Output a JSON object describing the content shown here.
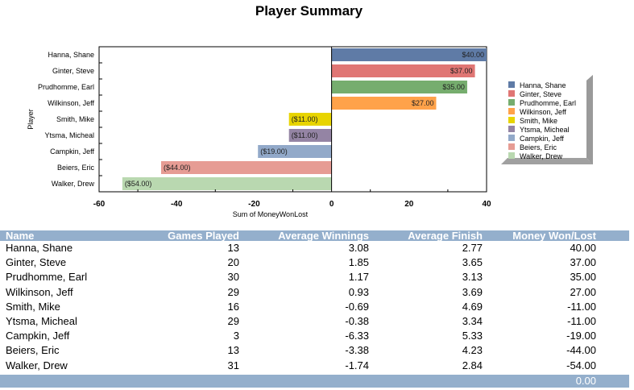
{
  "title": "Player Summary",
  "chart_data": {
    "type": "bar",
    "orientation": "horizontal",
    "categories": [
      "Hanna, Shane",
      "Ginter, Steve",
      "Prudhomme, Earl",
      "Wilkinson, Jeff",
      "Smith, Mike",
      "Ytsma, Micheal",
      "Campkin, Jeff",
      "Beiers, Eric",
      "Walker, Drew"
    ],
    "values": [
      40,
      37,
      35,
      27,
      -11,
      -11,
      -19,
      -44,
      -54
    ],
    "data_labels": [
      "$40.00",
      "$37.00",
      "$35.00",
      "$27.00",
      "($11.00)",
      "($11.00)",
      "($19.00)",
      "($44.00)",
      "($54.00)"
    ],
    "colors": [
      "#5f7ba6",
      "#e07674",
      "#76ad6e",
      "#ffa24a",
      "#e8d400",
      "#9484a4",
      "#92a9c9",
      "#e69c94",
      "#b9d8b0"
    ],
    "xlabel": "Sum of MoneyWonLost",
    "ylabel": "Player",
    "xlim": [
      -60,
      40
    ],
    "xticks": [
      "-60",
      "-40",
      "-20",
      "0",
      "20",
      "40"
    ],
    "xtick_values": [
      -60,
      -40,
      -20,
      0,
      20,
      40
    ],
    "legend": [
      "Hanna, Shane",
      "Ginter, Steve",
      "Prudhomme, Earl",
      "Wilkinson, Jeff",
      "Smith, Mike",
      "Ytsma, Micheal",
      "Campkin, Jeff",
      "Beiers, Eric",
      "Walker, Drew"
    ],
    "legend_position": "right",
    "grid": false
  },
  "table": {
    "headers": [
      "Name",
      "Games Played",
      "Average Winnings",
      "Average Finish",
      "Money Won/Lost"
    ],
    "rows": [
      [
        "Hanna, Shane",
        "13",
        "3.08",
        "2.77",
        "40.00"
      ],
      [
        "Ginter, Steve",
        "20",
        "1.85",
        "3.65",
        "37.00"
      ],
      [
        "Prudhomme, Earl",
        "30",
        "1.17",
        "3.13",
        "35.00"
      ],
      [
        "Wilkinson, Jeff",
        "29",
        "0.93",
        "3.69",
        "27.00"
      ],
      [
        "Smith, Mike",
        "16",
        "-0.69",
        "4.69",
        "-11.00"
      ],
      [
        "Ytsma, Micheal",
        "29",
        "-0.38",
        "3.34",
        "-11.00"
      ],
      [
        "Campkin, Jeff",
        "3",
        "-6.33",
        "5.33",
        "-19.00"
      ],
      [
        "Beiers, Eric",
        "13",
        "-3.38",
        "4.23",
        "-44.00"
      ],
      [
        "Walker, Drew",
        "31",
        "-1.74",
        "2.84",
        "-54.00"
      ]
    ],
    "total": "0.00"
  }
}
